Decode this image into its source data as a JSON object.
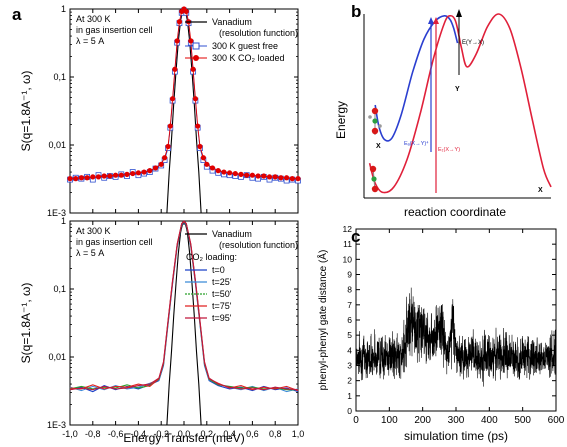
{
  "panel_labels": {
    "a": "a",
    "b": "b",
    "c": "c"
  },
  "colors": {
    "black": "#000000",
    "guest_free": "#3050d0",
    "co2_loaded": "#e00000",
    "t0": "#1a40c8",
    "t25": "#3a8ad8",
    "t50": "#2aa02a",
    "t75": "#e02020",
    "t95": "#c0183c",
    "blue_curve": "#2b3fd0",
    "red_curve": "#e0203a",
    "atom_red": "#d81818",
    "atom_green": "#2aa040",
    "atom_grey": "#9a9a9a"
  },
  "chart_data": [
    {
      "id": "a-top",
      "type": "line",
      "ylabel": "S(q=1.8A⁻¹, ω)",
      "yscale": "log",
      "xlim": [
        -1.0,
        1.0
      ],
      "ylim": [
        0.001,
        1
      ],
      "x_ticks": [
        -1.0,
        -0.8,
        -0.6,
        -0.4,
        -0.2,
        0.0,
        0.2,
        0.4,
        0.6,
        0.8,
        1.0
      ],
      "y_ticks": [
        0.001,
        0.01,
        0.1,
        1
      ],
      "y_tick_labels": [
        "1E-3",
        "0,01",
        "0,1",
        "1"
      ],
      "annotation": [
        "At 300 K",
        "in gas insertion cell",
        "λ = 5 A"
      ],
      "legend": [
        "Vanadium",
        "(resolution function)",
        "300 K guest free",
        "300 K CO₂ loaded"
      ],
      "series": [
        {
          "name": "Vanadium (resolution function)",
          "color": "#000000",
          "style": "line",
          "x": [
            -1.0,
            -0.15,
            -0.13,
            -0.11,
            -0.09,
            -0.07,
            -0.05,
            -0.03,
            -0.01,
            0.0,
            0.01,
            0.03,
            0.05,
            0.07,
            0.09,
            0.11,
            0.13,
            0.15,
            1.0
          ],
          "y": [
            0.001,
            0.001,
            0.004,
            0.012,
            0.04,
            0.12,
            0.33,
            0.68,
            0.96,
            1.0,
            0.96,
            0.68,
            0.33,
            0.12,
            0.04,
            0.012,
            0.004,
            0.001,
            0.001
          ]
        },
        {
          "name": "300 K guest free",
          "color": "#3050d0",
          "style": "open-square",
          "x": [
            -1.0,
            -0.95,
            -0.9,
            -0.85,
            -0.8,
            -0.75,
            -0.7,
            -0.65,
            -0.6,
            -0.55,
            -0.5,
            -0.45,
            -0.4,
            -0.35,
            -0.3,
            -0.25,
            -0.2,
            -0.17,
            -0.14,
            -0.12,
            -0.1,
            -0.08,
            -0.06,
            -0.04,
            -0.02,
            0.0,
            0.02,
            0.04,
            0.06,
            0.08,
            0.1,
            0.12,
            0.14,
            0.17,
            0.2,
            0.25,
            0.3,
            0.35,
            0.4,
            0.45,
            0.5,
            0.55,
            0.6,
            0.65,
            0.7,
            0.75,
            0.8,
            0.85,
            0.9,
            0.95,
            1.0
          ],
          "y": [
            0.0031,
            0.0033,
            0.0032,
            0.0034,
            0.0031,
            0.0036,
            0.0033,
            0.0035,
            0.0034,
            0.0037,
            0.0035,
            0.004,
            0.0036,
            0.0038,
            0.004,
            0.0045,
            0.005,
            0.006,
            0.009,
            0.018,
            0.045,
            0.12,
            0.32,
            0.62,
            0.88,
            0.95,
            0.88,
            0.62,
            0.32,
            0.12,
            0.045,
            0.018,
            0.009,
            0.006,
            0.0048,
            0.0042,
            0.0039,
            0.0037,
            0.0036,
            0.0035,
            0.0034,
            0.0036,
            0.0033,
            0.0032,
            0.0034,
            0.0031,
            0.0033,
            0.0032,
            0.003,
            0.0031,
            0.003
          ]
        },
        {
          "name": "300 K CO₂ loaded",
          "color": "#e00000",
          "style": "filled-circle",
          "x": [
            -1.0,
            -0.95,
            -0.9,
            -0.85,
            -0.8,
            -0.75,
            -0.7,
            -0.65,
            -0.6,
            -0.55,
            -0.5,
            -0.45,
            -0.4,
            -0.35,
            -0.3,
            -0.25,
            -0.2,
            -0.17,
            -0.14,
            -0.12,
            -0.1,
            -0.08,
            -0.06,
            -0.04,
            -0.02,
            0.0,
            0.02,
            0.04,
            0.06,
            0.08,
            0.1,
            0.12,
            0.14,
            0.17,
            0.2,
            0.25,
            0.3,
            0.35,
            0.4,
            0.45,
            0.5,
            0.55,
            0.6,
            0.65,
            0.7,
            0.75,
            0.8,
            0.85,
            0.9,
            0.95,
            1.0
          ],
          "y": [
            0.0032,
            0.0032,
            0.0033,
            0.0033,
            0.0034,
            0.0034,
            0.0035,
            0.0035,
            0.0036,
            0.0036,
            0.0037,
            0.0038,
            0.0039,
            0.004,
            0.0042,
            0.0046,
            0.0052,
            0.0065,
            0.0095,
            0.019,
            0.048,
            0.13,
            0.34,
            0.65,
            0.92,
            1.0,
            0.92,
            0.65,
            0.34,
            0.13,
            0.048,
            0.019,
            0.0095,
            0.0065,
            0.0052,
            0.0046,
            0.0042,
            0.004,
            0.0039,
            0.0038,
            0.0037,
            0.0036,
            0.0036,
            0.0035,
            0.0035,
            0.0034,
            0.0034,
            0.0033,
            0.0033,
            0.0032,
            0.0032
          ]
        }
      ]
    },
    {
      "id": "a-bottom",
      "type": "line",
      "xlabel": "Energy Transfer (meV)",
      "ylabel": "S(q=1.8A⁻¹, ω)",
      "yscale": "log",
      "xlim": [
        -1.0,
        1.0
      ],
      "ylim": [
        0.001,
        1
      ],
      "x_ticks": [
        -1.0,
        -0.8,
        -0.6,
        -0.4,
        -0.2,
        0.0,
        0.2,
        0.4,
        0.6,
        0.8,
        1.0
      ],
      "x_tick_labels": [
        "-1,0",
        "-0,8",
        "-0,6",
        "-0,4",
        "-0,2",
        "0,0",
        "0,2",
        "0,4",
        "0,6",
        "0,8",
        "1,0"
      ],
      "y_ticks": [
        0.001,
        0.01,
        0.1,
        1
      ],
      "y_tick_labels": [
        "1E-3",
        "0,01",
        "0,1",
        "1"
      ],
      "annotation": [
        "At 300 K",
        "in gas insertion cell",
        "λ = 5 A"
      ],
      "legend": [
        "Vanadium",
        "(resolution function)",
        "CO₂ loading:",
        "t=0",
        "t=25'",
        "t=50'",
        "t=75'",
        "t=95'"
      ],
      "series": [
        {
          "name": "Vanadium (resolution function)",
          "color": "#000000",
          "x": [
            -1.0,
            -0.15,
            -0.13,
            -0.11,
            -0.09,
            -0.07,
            -0.05,
            -0.03,
            -0.01,
            0.0,
            0.01,
            0.03,
            0.05,
            0.07,
            0.09,
            0.11,
            0.13,
            0.15,
            1.0
          ],
          "y": [
            0.001,
            0.001,
            0.004,
            0.012,
            0.04,
            0.12,
            0.33,
            0.68,
            0.96,
            1.0,
            0.96,
            0.68,
            0.33,
            0.12,
            0.04,
            0.012,
            0.004,
            0.001,
            0.001
          ]
        },
        {
          "name": "t=0",
          "color": "#1a40c8",
          "x": [
            -1.0,
            -0.9,
            -0.8,
            -0.7,
            -0.6,
            -0.5,
            -0.4,
            -0.3,
            -0.22,
            -0.18,
            -0.14,
            -0.1,
            -0.06,
            -0.02,
            0.0,
            0.02,
            0.06,
            0.1,
            0.14,
            0.18,
            0.22,
            0.3,
            0.4,
            0.5,
            0.6,
            0.7,
            0.8,
            0.9,
            1.0
          ],
          "y": [
            0.0033,
            0.0036,
            0.0031,
            0.0038,
            0.0033,
            0.0037,
            0.0034,
            0.0039,
            0.0045,
            0.0075,
            0.03,
            0.12,
            0.42,
            0.88,
            0.95,
            0.88,
            0.42,
            0.12,
            0.03,
            0.0075,
            0.0045,
            0.0038,
            0.0034,
            0.0036,
            0.0032,
            0.0037,
            0.0033,
            0.0035,
            0.0031
          ]
        },
        {
          "name": "t=25'",
          "color": "#3a8ad8",
          "x": [
            -1.0,
            -0.9,
            -0.8,
            -0.7,
            -0.6,
            -0.5,
            -0.4,
            -0.3,
            -0.22,
            -0.18,
            -0.14,
            -0.1,
            -0.06,
            -0.02,
            0.0,
            0.02,
            0.06,
            0.1,
            0.14,
            0.18,
            0.22,
            0.3,
            0.4,
            0.5,
            0.6,
            0.7,
            0.8,
            0.9,
            1.0
          ],
          "y": [
            0.0036,
            0.0032,
            0.0037,
            0.0033,
            0.0038,
            0.0034,
            0.0036,
            0.0041,
            0.0046,
            0.0078,
            0.031,
            0.125,
            0.43,
            0.89,
            0.96,
            0.89,
            0.43,
            0.125,
            0.031,
            0.0078,
            0.0046,
            0.004,
            0.0036,
            0.0033,
            0.0037,
            0.0032,
            0.0036,
            0.0031,
            0.0034
          ]
        },
        {
          "name": "t=50'",
          "color": "#2aa02a",
          "x": [
            -1.0,
            -0.9,
            -0.8,
            -0.7,
            -0.6,
            -0.5,
            -0.4,
            -0.3,
            -0.22,
            -0.18,
            -0.14,
            -0.1,
            -0.06,
            -0.02,
            0.0,
            0.02,
            0.06,
            0.1,
            0.14,
            0.18,
            0.22,
            0.3,
            0.4,
            0.5,
            0.6,
            0.7,
            0.8,
            0.9,
            1.0
          ],
          "y": [
            0.0034,
            0.0037,
            0.0034,
            0.0036,
            0.0035,
            0.0039,
            0.0035,
            0.0038,
            0.0047,
            0.008,
            0.032,
            0.13,
            0.44,
            0.9,
            0.97,
            0.9,
            0.44,
            0.13,
            0.032,
            0.008,
            0.0047,
            0.0039,
            0.0037,
            0.0035,
            0.0036,
            0.0034,
            0.0035,
            0.0033,
            0.0033
          ]
        },
        {
          "name": "t=75'",
          "color": "#e02020",
          "x": [
            -1.0,
            -0.9,
            -0.8,
            -0.7,
            -0.6,
            -0.5,
            -0.4,
            -0.3,
            -0.22,
            -0.18,
            -0.14,
            -0.1,
            -0.06,
            -0.02,
            0.0,
            0.02,
            0.06,
            0.1,
            0.14,
            0.18,
            0.22,
            0.3,
            0.4,
            0.5,
            0.6,
            0.7,
            0.8,
            0.9,
            1.0
          ],
          "y": [
            0.0035,
            0.0034,
            0.0039,
            0.0034,
            0.0037,
            0.0036,
            0.004,
            0.0037,
            0.0048,
            0.0082,
            0.033,
            0.13,
            0.45,
            0.91,
            0.98,
            0.91,
            0.45,
            0.13,
            0.033,
            0.0082,
            0.0048,
            0.0041,
            0.0035,
            0.0038,
            0.0033,
            0.0036,
            0.0034,
            0.0037,
            0.0032
          ]
        },
        {
          "name": "t=95'",
          "color": "#c0183c",
          "x": [
            -1.0,
            -0.9,
            -0.8,
            -0.7,
            -0.6,
            -0.5,
            -0.4,
            -0.3,
            -0.22,
            -0.18,
            -0.14,
            -0.1,
            -0.06,
            -0.02,
            0.0,
            0.02,
            0.06,
            0.1,
            0.14,
            0.18,
            0.22,
            0.3,
            0.4,
            0.5,
            0.6,
            0.7,
            0.8,
            0.9,
            1.0
          ],
          "y": [
            0.0033,
            0.0035,
            0.0033,
            0.0037,
            0.0034,
            0.0035,
            0.0038,
            0.004,
            0.0049,
            0.0085,
            0.034,
            0.135,
            0.46,
            0.92,
            1.0,
            0.92,
            0.46,
            0.135,
            0.034,
            0.0085,
            0.0049,
            0.004,
            0.0036,
            0.0034,
            0.0035,
            0.0033,
            0.0036,
            0.0034,
            0.0033
          ]
        }
      ]
    },
    {
      "id": "b",
      "type": "line",
      "xlabel": "reaction coordinate",
      "ylabel": "Energy",
      "xlim": [
        0,
        1
      ],
      "ylim": [
        0,
        1
      ],
      "labels": {
        "x_left": "X",
        "x_right": "X",
        "y": "Y",
        "e_yx": "E(Y→X)",
        "e_blue": "Eₐ(X→Y)⁴",
        "e_red": "E₁(X→Y)"
      },
      "series": [
        {
          "name": "blue",
          "color": "#2b3fd0",
          "x": [
            0.06,
            0.08,
            0.11,
            0.15,
            0.2,
            0.26,
            0.32,
            0.38,
            0.43,
            0.46,
            0.48,
            0.5
          ],
          "y": [
            0.5,
            0.38,
            0.31,
            0.32,
            0.45,
            0.68,
            0.86,
            0.96,
            0.99,
            0.97,
            0.92,
            0.84
          ]
        },
        {
          "name": "red",
          "color": "#e0203a",
          "x": [
            0.03,
            0.06,
            0.1,
            0.16,
            0.23,
            0.3,
            0.37,
            0.43,
            0.46,
            0.49,
            0.52,
            0.55,
            0.6,
            0.66,
            0.72,
            0.78,
            0.84,
            0.9,
            0.96,
            1.0
          ],
          "y": [
            0.18,
            0.07,
            0.02,
            0.05,
            0.2,
            0.45,
            0.75,
            0.95,
            0.99,
            0.96,
            0.82,
            0.71,
            0.78,
            0.93,
            1.0,
            0.92,
            0.7,
            0.42,
            0.15,
            0.05
          ]
        }
      ]
    },
    {
      "id": "c",
      "type": "line",
      "xlabel": "simulation time (ps)",
      "ylabel": "phenyl-phenyl gate distance (Å)",
      "xlim": [
        0,
        600
      ],
      "ylim": [
        0,
        12
      ],
      "x_ticks": [
        0,
        100,
        200,
        300,
        400,
        500,
        600
      ],
      "y_ticks": [
        0,
        1,
        2,
        3,
        4,
        5,
        6,
        7,
        8,
        9,
        10,
        11,
        12
      ],
      "series": [
        {
          "name": "distance",
          "color": "#000000",
          "x": [
            0,
            20,
            40,
            60,
            80,
            100,
            120,
            140,
            150,
            160,
            170,
            180,
            190,
            200,
            220,
            240,
            260,
            270,
            280,
            290,
            300,
            320,
            340,
            360,
            380,
            400,
            420,
            440,
            460,
            480,
            500,
            520,
            540,
            560,
            580,
            600
          ],
          "y_mean": [
            3.5,
            3.6,
            3.4,
            3.7,
            3.5,
            3.6,
            3.5,
            3.6,
            5.0,
            6.5,
            6.2,
            5.5,
            5.8,
            5.2,
            4.8,
            5.3,
            5.5,
            3.8,
            4.0,
            6.6,
            3.8,
            3.6,
            3.5,
            3.6,
            3.4,
            3.7,
            3.5,
            3.6,
            3.5,
            3.4,
            3.6,
            3.5,
            3.7,
            3.5,
            3.6,
            3.5
          ],
          "y_min": [
            1.8,
            1.6,
            1.7,
            1.8,
            1.5,
            1.7,
            1.8,
            1.6,
            1.9,
            2.5,
            2.6,
            2.3,
            2.2,
            2.4,
            2.2,
            2.5,
            2.8,
            1.6,
            1.5,
            2.8,
            1.6,
            1.7,
            1.8,
            1.6,
            1.4,
            1.6,
            1.7,
            1.6,
            1.5,
            1.7,
            1.6,
            1.7,
            1.6,
            1.8,
            1.7,
            1.7
          ],
          "y_max": [
            5.4,
            5.8,
            5.6,
            5.9,
            5.7,
            5.6,
            5.9,
            5.8,
            8.0,
            9.1,
            8.5,
            7.8,
            8.3,
            7.6,
            7.2,
            8.0,
            8.1,
            5.9,
            6.2,
            8.9,
            5.7,
            5.6,
            5.8,
            5.5,
            5.7,
            6.0,
            5.6,
            5.9,
            5.7,
            5.6,
            5.8,
            5.7,
            5.6,
            5.8,
            5.9,
            5.6
          ]
        }
      ]
    }
  ]
}
